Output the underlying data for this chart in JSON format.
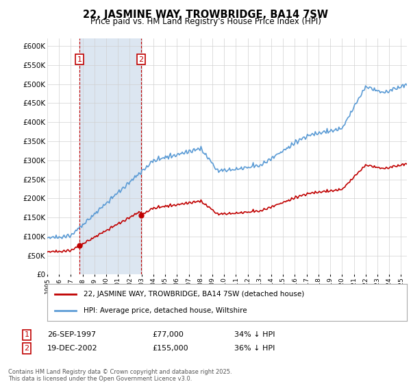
{
  "title": "22, JASMINE WAY, TROWBRIDGE, BA14 7SW",
  "subtitle": "Price paid vs. HM Land Registry's House Price Index (HPI)",
  "legend_line1": "22, JASMINE WAY, TROWBRIDGE, BA14 7SW (detached house)",
  "legend_line2": "HPI: Average price, detached house, Wiltshire",
  "footnote": "Contains HM Land Registry data © Crown copyright and database right 2025.\nThis data is licensed under the Open Government Licence v3.0.",
  "sale1_date": "26-SEP-1997",
  "sale1_price": "£77,000",
  "sale1_hpi": "34% ↓ HPI",
  "sale1_year": 1997.73,
  "sale1_value": 77000,
  "sale2_date": "19-DEC-2002",
  "sale2_price": "£155,000",
  "sale2_hpi": "36% ↓ HPI",
  "sale2_year": 2002.96,
  "sale2_value": 155000,
  "hpi_color": "#5b9bd5",
  "price_color": "#c00000",
  "shade_color": "#dce6f1",
  "grid_color": "#d0d0d0",
  "ylim_min": 0,
  "ylim_max": 620000,
  "ytick_step": 50000,
  "background_color": "#ffffff",
  "figwidth": 6.0,
  "figheight": 5.6,
  "dpi": 100
}
